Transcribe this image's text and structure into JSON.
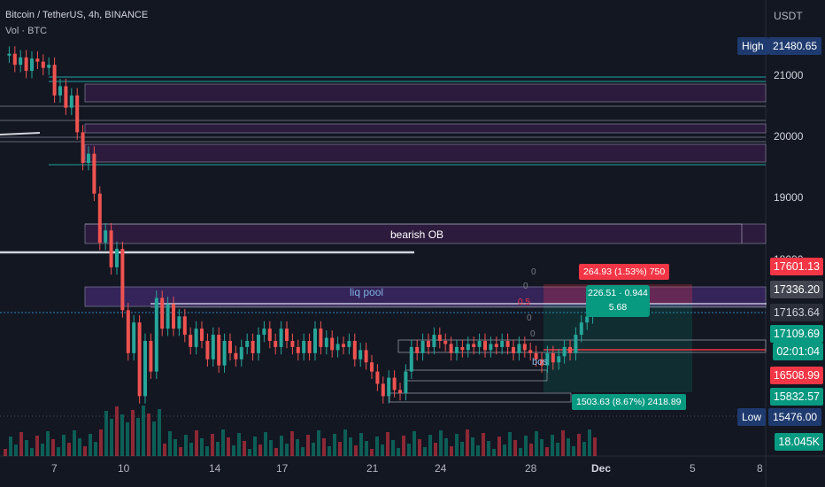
{
  "header": {
    "symbol": "Bitcoin / TetherUS, 4h, BINANCE",
    "volume_label": "Vol · BTC"
  },
  "currency": "USDT",
  "chart_data": {
    "type": "candlestick",
    "price_axis": {
      "ticks": [
        21000.0,
        20000.0,
        19000.0,
        18000.0
      ],
      "range": [
        15200,
        21950
      ]
    },
    "time_axis": {
      "ticks": [
        "7",
        "10",
        "14",
        "17",
        "21",
        "24",
        "28",
        "Dec",
        "5",
        "8"
      ]
    },
    "high": {
      "label": "High",
      "value": "21480.65"
    },
    "low": {
      "label": "Low",
      "value": "15476.00"
    },
    "price_labels": [
      {
        "value": "17601.13",
        "color": "#f23645"
      },
      {
        "value": "17336.20",
        "color": "#434651"
      },
      {
        "value": "17163.64",
        "color": "#2a2e39"
      },
      {
        "value": "17109.69",
        "color": "#089981"
      },
      {
        "value": "02:01:04",
        "color": "#089981"
      },
      {
        "value": "16508.99",
        "color": "#f23645"
      },
      {
        "value": "15832.57",
        "color": "#089981"
      },
      {
        "value": "18.045K",
        "color": "#089981"
      }
    ],
    "annotations": {
      "bearish_ob": "bearish OB",
      "liq_pool": "liq pool",
      "bos": "bos",
      "fib_0a": "0",
      "fib_0b": "0",
      "fib_05": "0.5",
      "fib_0c": "0",
      "fib_0d": "0",
      "target_tag": "264.93 (1.53%) 750",
      "measure_1": "226.51 · 0.944",
      "measure_2": "5.68",
      "stop_tag": "1503.63 (8.67%) 2418.89"
    },
    "path": [
      21350,
      21380,
      21200,
      21320,
      21100,
      21300,
      21250,
      21150,
      21200,
      20700,
      20850,
      20500,
      20700,
      20100,
      19600,
      19750,
      19100,
      18300,
      18500,
      17900,
      18200,
      17200,
      16500,
      17000,
      15800,
      16700,
      16200,
      17400,
      16900,
      17300,
      16900,
      17100,
      16800,
      16600,
      16900,
      16700,
      16400,
      16800,
      16300,
      16700,
      16500,
      16400,
      16600,
      16700,
      16500,
      16800,
      16900,
      16700,
      16600,
      16900,
      16700,
      16600,
      16500,
      16700,
      16500,
      16900,
      16600,
      16750,
      16550,
      16650,
      16600,
      16700,
      16400,
      16550,
      16350,
      16200,
      16000,
      15800,
      16100,
      15900,
      15850,
      16200,
      16600,
      16500,
      16700,
      16600,
      16800,
      16700,
      16650,
      16500,
      16600,
      16550,
      16650,
      16600,
      16700,
      16550,
      16650,
      16600,
      16700,
      16600,
      16500,
      16650,
      16550,
      16500,
      16400,
      16300,
      16500,
      16350,
      16450,
      16600,
      16500,
      16800,
      17000,
      17100,
      17150
    ]
  }
}
